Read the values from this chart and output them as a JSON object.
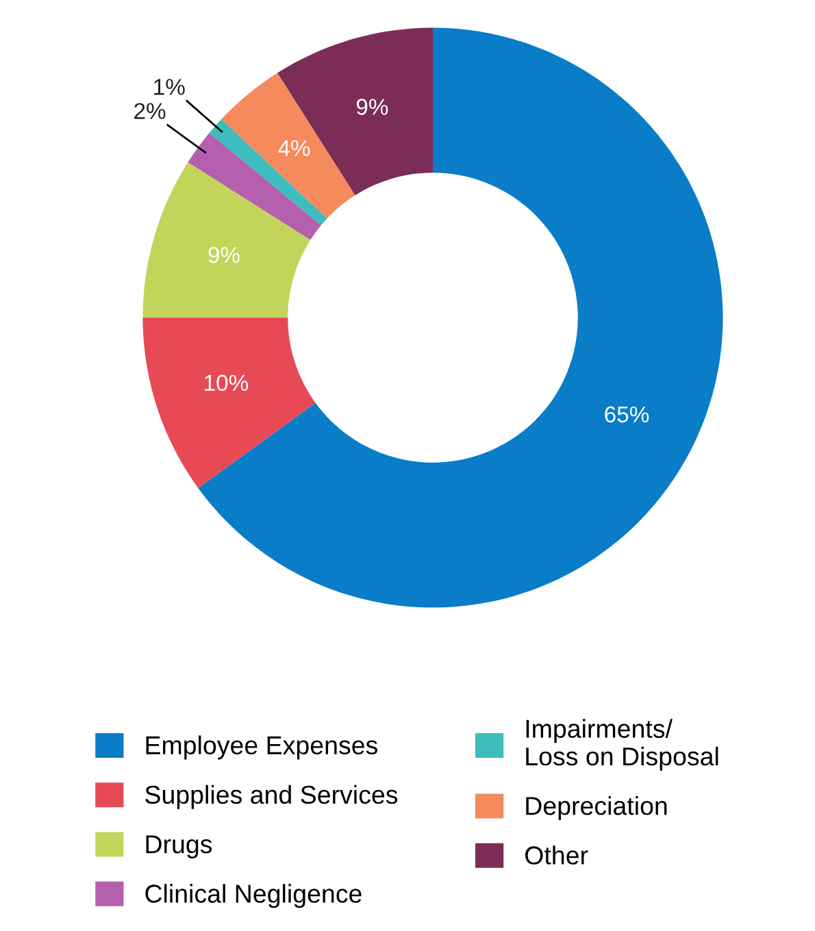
{
  "chart_data": {
    "type": "donut",
    "categories": [
      "Employee Expenses",
      "Supplies and Services",
      "Drugs",
      "Clinical Negligence",
      "Impairments/\nLoss on Disposal",
      "Depreciation",
      "Other"
    ],
    "values": [
      65,
      10,
      9,
      2,
      1,
      4,
      9
    ],
    "colors": [
      "#0a7dc8",
      "#e84a55",
      "#c2d55a",
      "#b560ae",
      "#3dbdbd",
      "#f58a5c",
      "#7b2d57"
    ],
    "value_labels": [
      "65%",
      "10%",
      "9%",
      "2%",
      "1%",
      "4%",
      "9%"
    ],
    "legend": "bottom"
  }
}
